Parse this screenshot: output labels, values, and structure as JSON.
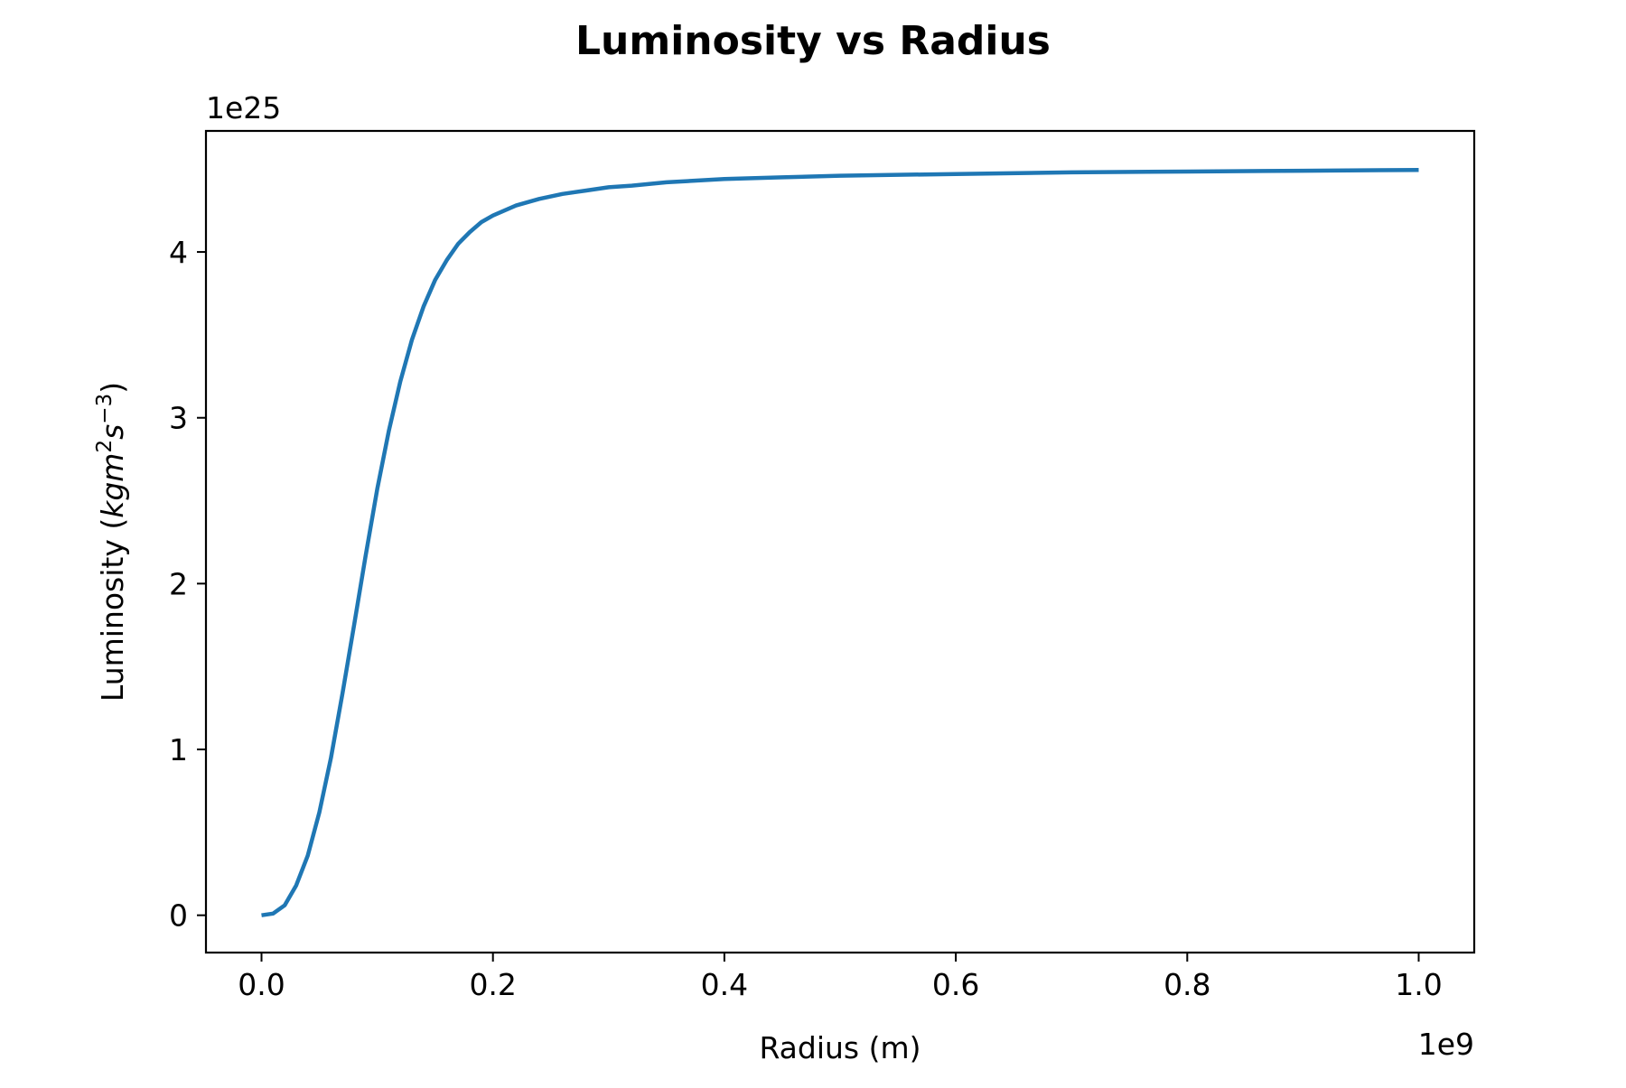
{
  "chart_data": {
    "type": "line",
    "title": "Luminosity vs Radius",
    "xlabel": "Radius (m)",
    "ylabel": {
      "pre": "Luminosity (",
      "base1": "kgm",
      "sup1": "2",
      "base2": "s",
      "sup2": "−3",
      "post": ")"
    },
    "x_offset_label": "1e9",
    "y_offset_label": "1e25",
    "x_scale": 1000000000.0,
    "y_scale": 1e+25,
    "xlim": [
      -0.048,
      1.048
    ],
    "ylim": [
      -0.225,
      4.73
    ],
    "x_ticks": [
      {
        "value": 0.0,
        "label": "0.0"
      },
      {
        "value": 0.2,
        "label": "0.2"
      },
      {
        "value": 0.4,
        "label": "0.4"
      },
      {
        "value": 0.6,
        "label": "0.6"
      },
      {
        "value": 0.8,
        "label": "0.8"
      },
      {
        "value": 1.0,
        "label": "1.0"
      }
    ],
    "y_ticks": [
      {
        "value": 0,
        "label": "0"
      },
      {
        "value": 1,
        "label": "1"
      },
      {
        "value": 2,
        "label": "2"
      },
      {
        "value": 3,
        "label": "3"
      },
      {
        "value": 4,
        "label": "4"
      }
    ],
    "grid": false,
    "series": [
      {
        "color": "#1f77b4",
        "x": [
          0.0,
          0.01,
          0.02,
          0.03,
          0.04,
          0.05,
          0.06,
          0.07,
          0.08,
          0.09,
          0.1,
          0.11,
          0.12,
          0.13,
          0.14,
          0.15,
          0.16,
          0.17,
          0.18,
          0.19,
          0.2,
          0.22,
          0.24,
          0.26,
          0.28,
          0.3,
          0.32,
          0.35,
          0.4,
          0.45,
          0.5,
          0.6,
          0.7,
          0.8,
          0.9,
          1.0
        ],
        "y": [
          0.0,
          0.01,
          0.06,
          0.18,
          0.36,
          0.62,
          0.95,
          1.34,
          1.75,
          2.17,
          2.57,
          2.92,
          3.22,
          3.47,
          3.67,
          3.83,
          3.95,
          4.05,
          4.12,
          4.18,
          4.22,
          4.28,
          4.32,
          4.35,
          4.37,
          4.39,
          4.4,
          4.42,
          4.44,
          4.45,
          4.46,
          4.47,
          4.48,
          4.485,
          4.49,
          4.495
        ]
      }
    ]
  }
}
